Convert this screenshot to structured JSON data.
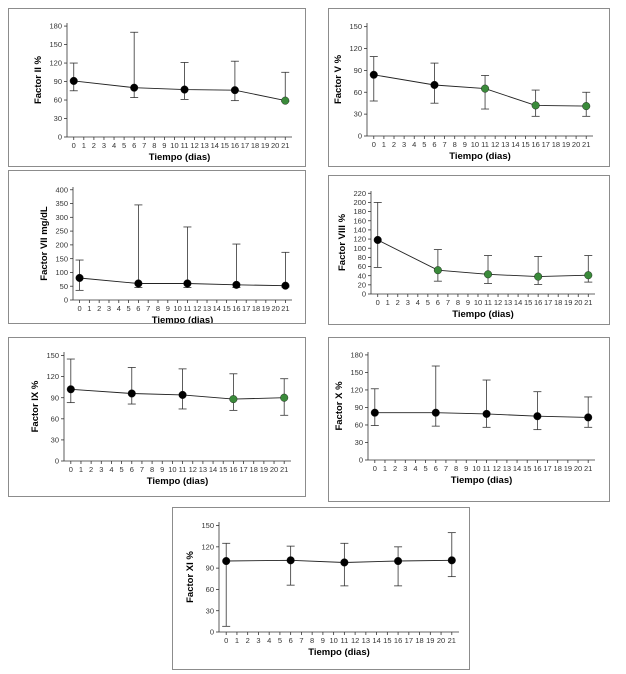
{
  "colors": {
    "black_point": "#000000",
    "green_point": "#3a8a3a",
    "line": "#222222"
  },
  "chart_data": [
    {
      "id": "factor-ii",
      "type": "line",
      "xlabel": "Tiempo (dias)",
      "ylabel": "Factor II %",
      "x_ticks": [
        0,
        1,
        2,
        3,
        4,
        5,
        6,
        7,
        8,
        9,
        10,
        11,
        12,
        13,
        14,
        15,
        16,
        17,
        18,
        19,
        20,
        21
      ],
      "y_ticks": [
        0,
        30,
        60,
        90,
        120,
        150,
        180
      ],
      "ylim": [
        0,
        185
      ],
      "grid": false,
      "points": [
        {
          "x": 0,
          "y": 91,
          "lo": 75,
          "hi": 120,
          "color": "black"
        },
        {
          "x": 6,
          "y": 80,
          "lo": 64,
          "hi": 170,
          "color": "black"
        },
        {
          "x": 11,
          "y": 77,
          "lo": 61,
          "hi": 121,
          "color": "black"
        },
        {
          "x": 16,
          "y": 76,
          "lo": 59,
          "hi": 123,
          "color": "black"
        },
        {
          "x": 21,
          "y": 59,
          "lo": 58,
          "hi": 105,
          "color": "green"
        }
      ]
    },
    {
      "id": "factor-v",
      "type": "line",
      "xlabel": "Tiempo (dias)",
      "ylabel": "Factor V %",
      "x_ticks": [
        0,
        1,
        2,
        3,
        4,
        5,
        6,
        7,
        8,
        9,
        10,
        11,
        12,
        13,
        14,
        15,
        16,
        17,
        18,
        19,
        20,
        21
      ],
      "y_ticks": [
        0,
        30,
        60,
        90,
        120,
        150
      ],
      "ylim": [
        0,
        155
      ],
      "grid": false,
      "points": [
        {
          "x": 0,
          "y": 84,
          "lo": 48,
          "hi": 109,
          "color": "black"
        },
        {
          "x": 6,
          "y": 70,
          "lo": 45,
          "hi": 100,
          "color": "black"
        },
        {
          "x": 11,
          "y": 65,
          "lo": 37,
          "hi": 83,
          "color": "green"
        },
        {
          "x": 16,
          "y": 42,
          "lo": 27,
          "hi": 63,
          "color": "green"
        },
        {
          "x": 21,
          "y": 41,
          "lo": 27,
          "hi": 60,
          "color": "green"
        }
      ]
    },
    {
      "id": "factor-vii",
      "type": "line",
      "xlabel": "Tiempo (dias)",
      "ylabel": "Factor VII mg/dL",
      "x_ticks": [
        0,
        1,
        2,
        3,
        4,
        5,
        6,
        7,
        8,
        9,
        10,
        11,
        12,
        13,
        14,
        15,
        16,
        17,
        18,
        19,
        20,
        21
      ],
      "y_ticks": [
        0,
        50,
        100,
        150,
        200,
        250,
        300,
        350,
        400
      ],
      "ylim": [
        0,
        410
      ],
      "grid": false,
      "points": [
        {
          "x": 0,
          "y": 80,
          "lo": 35,
          "hi": 145,
          "color": "black"
        },
        {
          "x": 6,
          "y": 60,
          "lo": 45,
          "hi": 345,
          "color": "black"
        },
        {
          "x": 11,
          "y": 60,
          "lo": 45,
          "hi": 265,
          "color": "black"
        },
        {
          "x": 16,
          "y": 55,
          "lo": 45,
          "hi": 203,
          "color": "black"
        },
        {
          "x": 21,
          "y": 52,
          "lo": 47,
          "hi": 173,
          "color": "black"
        }
      ]
    },
    {
      "id": "factor-viii",
      "type": "line",
      "xlabel": "Tiempo (dias)",
      "ylabel": "Factor VIII %",
      "x_ticks": [
        0,
        1,
        2,
        3,
        4,
        5,
        6,
        7,
        8,
        9,
        10,
        11,
        12,
        13,
        14,
        15,
        16,
        17,
        18,
        19,
        20,
        21
      ],
      "y_ticks": [
        0,
        20,
        40,
        60,
        80,
        100,
        120,
        140,
        160,
        180,
        200,
        220
      ],
      "ylim": [
        0,
        225
      ],
      "grid": false,
      "points": [
        {
          "x": 0,
          "y": 118,
          "lo": 58,
          "hi": 200,
          "color": "black"
        },
        {
          "x": 6,
          "y": 52,
          "lo": 28,
          "hi": 97,
          "color": "green"
        },
        {
          "x": 11,
          "y": 43,
          "lo": 23,
          "hi": 84,
          "color": "green"
        },
        {
          "x": 16,
          "y": 38,
          "lo": 21,
          "hi": 82,
          "color": "green"
        },
        {
          "x": 21,
          "y": 41,
          "lo": 26,
          "hi": 84,
          "color": "green"
        }
      ]
    },
    {
      "id": "factor-ix",
      "type": "line",
      "xlabel": "Tiempo (dias)",
      "ylabel": "Factor IX %",
      "x_ticks": [
        0,
        1,
        2,
        3,
        4,
        5,
        6,
        7,
        8,
        9,
        10,
        11,
        12,
        13,
        14,
        15,
        16,
        17,
        18,
        19,
        20,
        21
      ],
      "y_ticks": [
        0,
        30,
        60,
        90,
        120,
        150
      ],
      "ylim": [
        0,
        155
      ],
      "grid": false,
      "points": [
        {
          "x": 0,
          "y": 102,
          "lo": 83,
          "hi": 145,
          "color": "black"
        },
        {
          "x": 6,
          "y": 96,
          "lo": 81,
          "hi": 133,
          "color": "black"
        },
        {
          "x": 11,
          "y": 94,
          "lo": 74,
          "hi": 131,
          "color": "black"
        },
        {
          "x": 16,
          "y": 88,
          "lo": 72,
          "hi": 124,
          "color": "green"
        },
        {
          "x": 21,
          "y": 90,
          "lo": 65,
          "hi": 117,
          "color": "green"
        }
      ]
    },
    {
      "id": "factor-x",
      "type": "line",
      "xlabel": "Tiempo (dias)",
      "ylabel": "Factor X %",
      "x_ticks": [
        0,
        1,
        2,
        3,
        4,
        5,
        6,
        7,
        8,
        9,
        10,
        11,
        12,
        13,
        14,
        15,
        16,
        17,
        18,
        19,
        20,
        21
      ],
      "y_ticks": [
        0,
        30,
        60,
        90,
        120,
        150,
        180
      ],
      "ylim": [
        0,
        185
      ],
      "grid": false,
      "points": [
        {
          "x": 0,
          "y": 81,
          "lo": 59,
          "hi": 122,
          "color": "black"
        },
        {
          "x": 6,
          "y": 81,
          "lo": 58,
          "hi": 161,
          "color": "black"
        },
        {
          "x": 11,
          "y": 79,
          "lo": 56,
          "hi": 137,
          "color": "black"
        },
        {
          "x": 16,
          "y": 75,
          "lo": 52,
          "hi": 117,
          "color": "black"
        },
        {
          "x": 21,
          "y": 73,
          "lo": 56,
          "hi": 108,
          "color": "black"
        }
      ]
    },
    {
      "id": "factor-xi",
      "type": "line",
      "xlabel": "Tiempo (dias)",
      "ylabel": "Factor XI %",
      "x_ticks": [
        0,
        1,
        2,
        3,
        4,
        5,
        6,
        7,
        8,
        9,
        10,
        11,
        12,
        13,
        14,
        15,
        16,
        17,
        18,
        19,
        20,
        21
      ],
      "y_ticks": [
        0,
        30,
        60,
        90,
        120,
        150
      ],
      "ylim": [
        0,
        155
      ],
      "grid": false,
      "points": [
        {
          "x": 0,
          "y": 100,
          "lo": 8,
          "hi": 125,
          "color": "black"
        },
        {
          "x": 6,
          "y": 101,
          "lo": 66,
          "hi": 121,
          "color": "black"
        },
        {
          "x": 11,
          "y": 98,
          "lo": 65,
          "hi": 125,
          "color": "black"
        },
        {
          "x": 16,
          "y": 100,
          "lo": 65,
          "hi": 120,
          "color": "black"
        },
        {
          "x": 21,
          "y": 101,
          "lo": 78,
          "hi": 140,
          "color": "black"
        }
      ]
    }
  ]
}
